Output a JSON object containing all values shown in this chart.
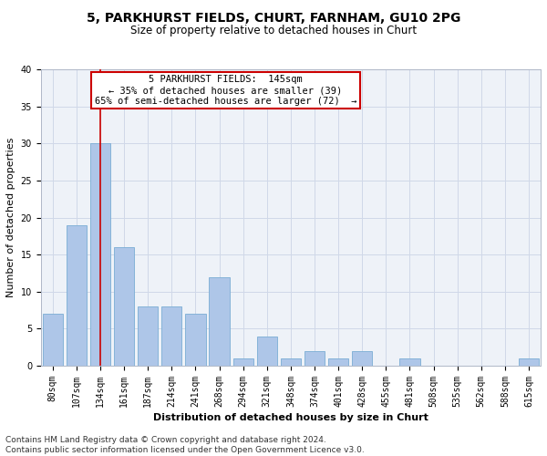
{
  "title1": "5, PARKHURST FIELDS, CHURT, FARNHAM, GU10 2PG",
  "title2": "Size of property relative to detached houses in Churt",
  "xlabel": "Distribution of detached houses by size in Churt",
  "ylabel": "Number of detached properties",
  "categories": [
    "80sqm",
    "107sqm",
    "134sqm",
    "161sqm",
    "187sqm",
    "214sqm",
    "241sqm",
    "268sqm",
    "294sqm",
    "321sqm",
    "348sqm",
    "374sqm",
    "401sqm",
    "428sqm",
    "455sqm",
    "481sqm",
    "508sqm",
    "535sqm",
    "562sqm",
    "588sqm",
    "615sqm"
  ],
  "values": [
    7,
    19,
    30,
    16,
    8,
    8,
    7,
    12,
    1,
    4,
    1,
    2,
    1,
    2,
    0,
    1,
    0,
    0,
    0,
    0,
    1
  ],
  "bar_color": "#aec6e8",
  "bar_edge_color": "#7aadd4",
  "grid_color": "#d0d8e8",
  "background_color": "#eef2f8",
  "annotation_box_color": "#cc0000",
  "vertical_line_color": "#cc0000",
  "vertical_line_x": 2,
  "annotation_line1": "5 PARKHURST FIELDS:  145sqm",
  "annotation_line2": "← 35% of detached houses are smaller (39)",
  "annotation_line3": "65% of semi-detached houses are larger (72)  →",
  "footer1": "Contains HM Land Registry data © Crown copyright and database right 2024.",
  "footer2": "Contains public sector information licensed under the Open Government Licence v3.0.",
  "ylim": [
    0,
    40
  ],
  "yticks": [
    0,
    5,
    10,
    15,
    20,
    25,
    30,
    35,
    40
  ],
  "title1_fontsize": 10,
  "title2_fontsize": 8.5,
  "xlabel_fontsize": 8,
  "ylabel_fontsize": 8,
  "footer_fontsize": 6.5,
  "tick_fontsize": 7,
  "ann_fontsize": 7.5
}
